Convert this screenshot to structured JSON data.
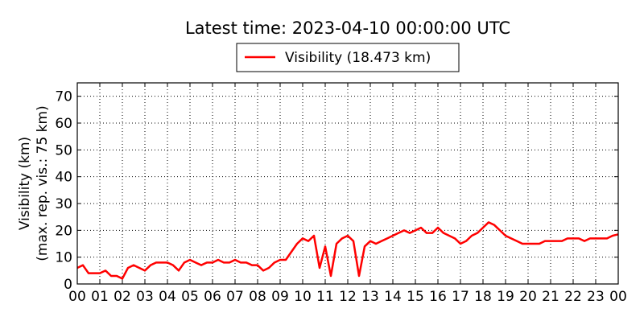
{
  "chart_data": {
    "type": "line",
    "title": "Latest time: 2023-04-10 00:00:00 UTC",
    "ylabel": [
      "Visibility (km)",
      "(max. rep. vis.: 75 km)"
    ],
    "xlim": [
      0,
      24
    ],
    "ylim": [
      0,
      75
    ],
    "yticks": [
      0,
      10,
      20,
      30,
      40,
      50,
      60,
      70
    ],
    "xticks": [
      {
        "value": 0,
        "label": "00"
      },
      {
        "value": 1,
        "label": "01"
      },
      {
        "value": 2,
        "label": "02"
      },
      {
        "value": 3,
        "label": "03"
      },
      {
        "value": 4,
        "label": "04"
      },
      {
        "value": 5,
        "label": "05"
      },
      {
        "value": 6,
        "label": "06"
      },
      {
        "value": 7,
        "label": "07"
      },
      {
        "value": 8,
        "label": "08"
      },
      {
        "value": 9,
        "label": "09"
      },
      {
        "value": 10,
        "label": "10"
      },
      {
        "value": 11,
        "label": "11"
      },
      {
        "value": 12,
        "label": "12"
      },
      {
        "value": 13,
        "label": "13"
      },
      {
        "value": 14,
        "label": "14"
      },
      {
        "value": 15,
        "label": "15"
      },
      {
        "value": 16,
        "label": "16"
      },
      {
        "value": 17,
        "label": "17"
      },
      {
        "value": 18,
        "label": "18"
      },
      {
        "value": 19,
        "label": "19"
      },
      {
        "value": 20,
        "label": "20"
      },
      {
        "value": 21,
        "label": "21"
      },
      {
        "value": 22,
        "label": "22"
      },
      {
        "value": 23,
        "label": "23"
      },
      {
        "value": 24,
        "label": "00"
      }
    ],
    "grid": true,
    "legend": "top",
    "x": [
      0,
      0.25,
      0.5,
      0.75,
      1,
      1.25,
      1.5,
      1.75,
      2,
      2.25,
      2.5,
      2.75,
      3,
      3.25,
      3.5,
      3.75,
      4,
      4.25,
      4.5,
      4.75,
      5,
      5.25,
      5.5,
      5.75,
      6,
      6.25,
      6.5,
      6.75,
      7,
      7.25,
      7.5,
      7.75,
      8,
      8.25,
      8.5,
      8.75,
      9,
      9.25,
      9.5,
      9.75,
      10,
      10.25,
      10.5,
      10.75,
      11,
      11.25,
      11.5,
      11.75,
      12,
      12.25,
      12.5,
      12.75,
      13,
      13.25,
      13.5,
      13.75,
      14,
      14.25,
      14.5,
      14.75,
      15,
      15.25,
      15.5,
      15.75,
      16,
      16.25,
      16.5,
      16.75,
      17,
      17.25,
      17.5,
      17.75,
      18,
      18.25,
      18.5,
      18.75,
      19,
      19.25,
      19.5,
      19.75,
      20,
      20.25,
      20.5,
      20.75,
      21,
      21.25,
      21.5,
      21.75,
      22,
      22.25,
      22.5,
      22.75,
      23,
      23.25,
      23.5,
      23.75,
      24
    ],
    "series": [
      {
        "name": "Visibility (18.473 km)",
        "color": "#ff0000",
        "values": [
          6,
          7,
          4,
          4,
          4,
          5,
          3,
          3,
          2,
          6,
          7,
          6,
          5,
          7,
          8,
          8,
          8,
          7,
          5,
          8,
          9,
          8,
          7,
          8,
          8,
          9,
          8,
          8,
          9,
          8,
          8,
          7,
          7,
          5,
          6,
          8,
          9,
          9,
          12,
          15,
          17,
          16,
          18,
          6,
          14,
          3,
          15,
          17,
          18,
          16,
          3,
          14,
          16,
          15,
          16,
          17,
          18,
          19,
          20,
          19,
          20,
          21,
          19,
          19,
          21,
          19,
          18,
          17,
          15,
          16,
          18,
          19,
          21,
          23,
          22,
          20,
          18,
          17,
          16,
          15,
          15,
          15,
          15,
          16,
          16,
          16,
          16,
          17,
          17,
          17,
          16,
          17,
          17,
          17,
          17,
          18,
          18.5
        ]
      }
    ]
  }
}
